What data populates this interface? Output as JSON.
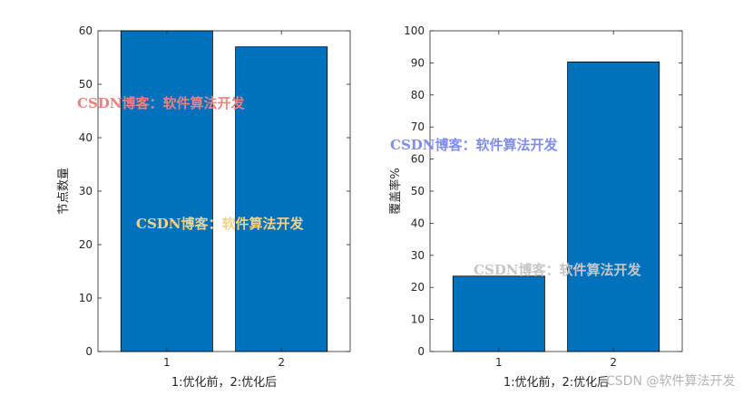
{
  "chart_data": [
    {
      "type": "bar",
      "categories": [
        "1",
        "2"
      ],
      "values": [
        60,
        57
      ],
      "xlabel": "1:优化前，2:优化后",
      "ylabel": "节点数量",
      "ylim": [
        0,
        60
      ],
      "yticks": [
        0,
        10,
        20,
        30,
        40,
        50,
        60
      ],
      "bar_color": "#0072BD",
      "grid": false
    },
    {
      "type": "bar",
      "categories": [
        "1",
        "2"
      ],
      "values": [
        23.5,
        90.3
      ],
      "xlabel": "1:优化前，2:优化后",
      "ylabel": "覆盖率%",
      "ylim": [
        0,
        100
      ],
      "yticks": [
        0,
        10,
        20,
        30,
        40,
        50,
        60,
        70,
        80,
        90,
        100
      ],
      "bar_color": "#0072BD",
      "grid": false
    }
  ],
  "watermarks": [
    {
      "text": "CSDN博客：软件算法开发",
      "color": "#f08080"
    },
    {
      "text": "CSDN博客：软件算法开发",
      "color": "#f2d28c"
    },
    {
      "text": "CSDN博客：软件算法开发",
      "color": "#7f8cf0"
    },
    {
      "text": "CSDN博客：软件算法开发",
      "color": "#c6c6c6"
    }
  ],
  "footer_watermark": "CSDN @软件算法开发"
}
